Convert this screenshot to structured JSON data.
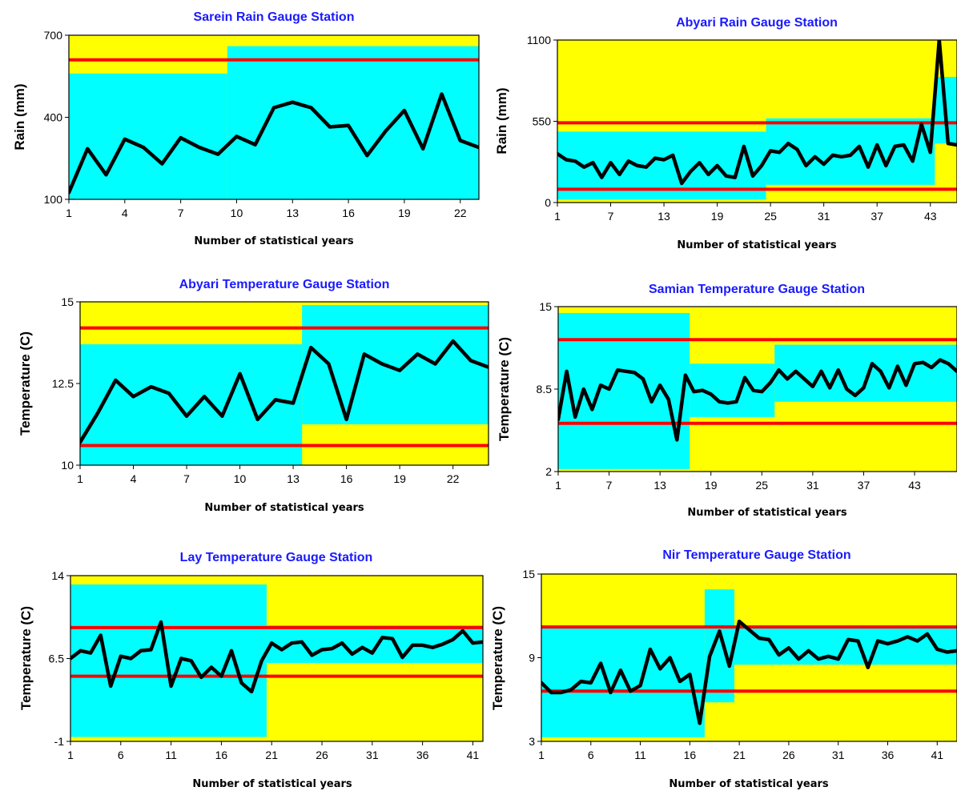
{
  "colors": {
    "yellow": "#ffff00",
    "cyan": "#00ffff",
    "red": "#ff0000",
    "line": "#000000",
    "title": "#1a1aff"
  },
  "chart_data": [
    {
      "type": "line",
      "title": "Sarein Rain Gauge Station",
      "xlabel": "Number of statistical years",
      "ylabel": "Rain (mm)",
      "xlim": [
        1,
        23
      ],
      "ylim": [
        100,
        700
      ],
      "yticks": [
        100,
        400,
        700
      ],
      "xticks": [
        1,
        4,
        7,
        10,
        13,
        16,
        19,
        22
      ],
      "x": [
        1,
        2,
        3,
        4,
        5,
        6,
        7,
        8,
        9,
        10,
        11,
        12,
        13,
        14,
        15,
        16,
        17,
        18,
        19,
        20,
        21,
        22,
        23
      ],
      "values": [
        125,
        285,
        190,
        320,
        290,
        230,
        325,
        290,
        265,
        330,
        300,
        435,
        455,
        435,
        365,
        370,
        260,
        350,
        425,
        285,
        485,
        315,
        290
      ],
      "red_lines": [
        610
      ],
      "regions": [
        {
          "x0": 1,
          "x1": 9.5,
          "low": 100,
          "high": 560
        },
        {
          "x0": 9.5,
          "x1": 23,
          "low": 100,
          "high": 660
        }
      ]
    },
    {
      "type": "line",
      "title": "Abyari Rain Gauge Station",
      "xlabel": "Number of statistical years",
      "ylabel": "Rain (mm)",
      "xlim": [
        1,
        46
      ],
      "ylim": [
        0,
        1100
      ],
      "yticks": [
        0,
        550,
        1100
      ],
      "xticks": [
        1,
        7,
        13,
        19,
        25,
        31,
        37,
        43
      ],
      "x": [
        1,
        2,
        3,
        4,
        5,
        6,
        7,
        8,
        9,
        10,
        11,
        12,
        13,
        14,
        15,
        16,
        17,
        18,
        19,
        20,
        21,
        22,
        23,
        24,
        25,
        26,
        27,
        28,
        29,
        30,
        31,
        32,
        33,
        34,
        35,
        36,
        37,
        38,
        39,
        40,
        41,
        42,
        43,
        44,
        45,
        46
      ],
      "values": [
        330,
        290,
        280,
        240,
        270,
        170,
        270,
        190,
        280,
        250,
        240,
        300,
        290,
        320,
        130,
        210,
        270,
        190,
        250,
        180,
        170,
        380,
        180,
        250,
        350,
        340,
        400,
        360,
        250,
        310,
        260,
        320,
        310,
        320,
        380,
        240,
        390,
        250,
        380,
        390,
        280,
        530,
        340,
        1100,
        400,
        390
      ],
      "red_lines": [
        540,
        90
      ],
      "regions": [
        {
          "x0": 1,
          "x1": 24.5,
          "low": 20,
          "high": 480
        },
        {
          "x0": 24.5,
          "x1": 43.5,
          "low": 120,
          "high": 570
        },
        {
          "x0": 43.5,
          "x1": 46,
          "low": 400,
          "high": 850
        }
      ]
    },
    {
      "type": "line",
      "title": "Abyari Temperature Gauge Station",
      "xlabel": "Number of statistical years",
      "ylabel": "Temperature (C)",
      "xlim": [
        1,
        24
      ],
      "ylim": [
        10,
        15
      ],
      "yticks": [
        10,
        12.5,
        15
      ],
      "xticks": [
        1,
        4,
        7,
        10,
        13,
        16,
        19,
        22
      ],
      "x": [
        1,
        2,
        3,
        4,
        5,
        6,
        7,
        8,
        9,
        10,
        11,
        12,
        13,
        14,
        15,
        16,
        17,
        18,
        19,
        20,
        21,
        22,
        23,
        24
      ],
      "values": [
        10.7,
        11.6,
        12.6,
        12.1,
        12.4,
        12.2,
        11.5,
        12.1,
        11.5,
        12.8,
        11.4,
        12.0,
        11.9,
        13.6,
        13.1,
        11.4,
        13.4,
        13.1,
        12.9,
        13.4,
        13.1,
        13.8,
        13.2,
        13.0
      ],
      "red_lines": [
        14.2,
        10.6
      ],
      "regions": [
        {
          "x0": 1,
          "x1": 13.5,
          "low": 10.0,
          "high": 13.7
        },
        {
          "x0": 13.5,
          "x1": 24,
          "low": 11.25,
          "high": 14.9
        }
      ]
    },
    {
      "type": "line",
      "title": "Samian Temperature Gauge Station",
      "xlabel": "Number of statistical years",
      "ylabel": "Temperature (C)",
      "xlim": [
        1,
        48
      ],
      "ylim": [
        2,
        15
      ],
      "yticks": [
        2,
        8.5,
        15
      ],
      "xticks": [
        1,
        7,
        13,
        19,
        25,
        31,
        37,
        43
      ],
      "x": [
        1,
        2,
        3,
        4,
        5,
        6,
        7,
        8,
        9,
        10,
        11,
        12,
        13,
        14,
        15,
        16,
        17,
        18,
        19,
        20,
        21,
        22,
        23,
        24,
        25,
        26,
        27,
        28,
        29,
        30,
        31,
        32,
        33,
        34,
        35,
        36,
        37,
        38,
        39,
        40,
        41,
        42,
        43,
        44,
        45,
        46,
        47,
        48
      ],
      "values": [
        6.1,
        9.9,
        6.3,
        8.5,
        6.9,
        8.8,
        8.5,
        10.0,
        9.9,
        9.8,
        9.3,
        7.5,
        8.8,
        7.7,
        4.5,
        9.6,
        8.3,
        8.4,
        8.1,
        7.5,
        7.4,
        7.5,
        9.4,
        8.4,
        8.3,
        9.0,
        10.0,
        9.3,
        9.9,
        9.3,
        8.7,
        9.9,
        8.6,
        10.0,
        8.5,
        8.0,
        8.6,
        10.5,
        9.9,
        8.6,
        10.3,
        8.8,
        10.5,
        10.6,
        10.2,
        10.8,
        10.5,
        9.9
      ],
      "red_lines": [
        12.4,
        5.8
      ],
      "regions": [
        {
          "x0": 1,
          "x1": 16.5,
          "low": 2.2,
          "high": 14.5
        },
        {
          "x0": 16.5,
          "x1": 26.5,
          "low": 6.3,
          "high": 10.5
        },
        {
          "x0": 26.5,
          "x1": 48,
          "low": 7.5,
          "high": 12.0
        }
      ]
    },
    {
      "type": "line",
      "title": "Lay Temperature Gauge Station",
      "xlabel": "Number of statistical years",
      "ylabel": "Temperature (C)",
      "xlim": [
        1,
        42
      ],
      "ylim": [
        -1,
        14
      ],
      "yticks": [
        -1,
        6.5,
        14
      ],
      "xticks": [
        1,
        6,
        11,
        16,
        21,
        26,
        31,
        36,
        41
      ],
      "x": [
        1,
        2,
        3,
        4,
        5,
        6,
        7,
        8,
        9,
        10,
        11,
        12,
        13,
        14,
        15,
        16,
        17,
        18,
        19,
        20,
        21,
        22,
        23,
        24,
        25,
        26,
        27,
        28,
        29,
        30,
        31,
        32,
        33,
        34,
        35,
        36,
        37,
        38,
        39,
        40,
        41,
        42
      ],
      "values": [
        6.5,
        7.2,
        7.0,
        8.6,
        4.0,
        6.7,
        6.5,
        7.2,
        7.3,
        9.8,
        4.0,
        6.5,
        6.3,
        4.8,
        5.7,
        4.9,
        7.2,
        4.3,
        3.5,
        6.3,
        7.9,
        7.3,
        7.9,
        8.0,
        6.8,
        7.3,
        7.4,
        7.9,
        6.9,
        7.5,
        7.0,
        8.4,
        8.3,
        6.6,
        7.7,
        7.7,
        7.5,
        7.8,
        8.2,
        9.0,
        7.9,
        8.0
      ],
      "red_lines": [
        9.3,
        4.9
      ],
      "regions": [
        {
          "x0": 1,
          "x1": 20.5,
          "low": -0.6,
          "high": 13.2
        },
        {
          "x0": 20.5,
          "x1": 42,
          "low": 6.1,
          "high": 9.5
        }
      ]
    },
    {
      "type": "line",
      "title": "Nir Temperature Gauge Station",
      "xlabel": "Number of statistical years",
      "ylabel": "Temperature (C)",
      "xlim": [
        1,
        43
      ],
      "ylim": [
        3,
        15
      ],
      "yticks": [
        3,
        9,
        15
      ],
      "xticks": [
        1,
        6,
        11,
        16,
        21,
        26,
        31,
        36,
        41
      ],
      "x": [
        1,
        2,
        3,
        4,
        5,
        6,
        7,
        8,
        9,
        10,
        11,
        12,
        13,
        14,
        15,
        16,
        17,
        18,
        19,
        20,
        21,
        22,
        23,
        24,
        25,
        26,
        27,
        28,
        29,
        30,
        31,
        32,
        33,
        34,
        35,
        36,
        37,
        38,
        39,
        40,
        41,
        42,
        43
      ],
      "values": [
        7.2,
        6.5,
        6.5,
        6.7,
        7.3,
        7.2,
        8.6,
        6.5,
        8.1,
        6.6,
        7.0,
        9.6,
        8.2,
        9.0,
        7.3,
        7.8,
        4.3,
        9.1,
        10.9,
        8.4,
        11.6,
        11.0,
        10.4,
        10.3,
        9.2,
        9.7,
        8.9,
        9.5,
        8.9,
        9.1,
        8.9,
        10.3,
        10.2,
        8.3,
        10.2,
        10.0,
        10.2,
        10.5,
        10.2,
        10.7,
        9.6,
        9.4,
        9.5
      ],
      "red_lines": [
        11.2,
        6.6
      ],
      "regions": [
        {
          "x0": 1,
          "x1": 17.5,
          "low": 3.3,
          "high": 11.2
        },
        {
          "x0": 17.5,
          "x1": 20.5,
          "low": 5.8,
          "high": 13.9
        },
        {
          "x0": 20.5,
          "x1": 43,
          "low": 8.5,
          "high": 11.2
        }
      ]
    }
  ]
}
